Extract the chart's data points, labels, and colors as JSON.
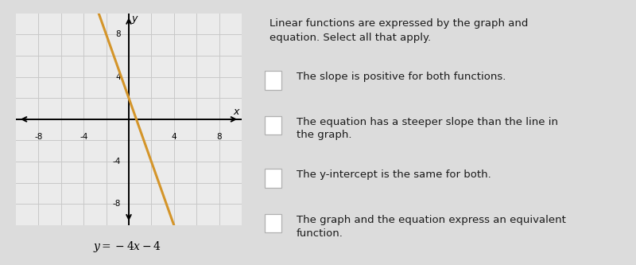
{
  "bg_color": "#dcdcdc",
  "graph_bg": "#ebebeb",
  "right_bg": "#dcdcdc",
  "line_color": "#d4952a",
  "line_slope": -3,
  "line_intercept": 2,
  "x_range": [
    -10,
    10
  ],
  "y_range": [
    -10,
    10
  ],
  "axis_ticks": [
    -8,
    -4,
    4,
    8
  ],
  "equation_label": "$y = -4x - 4$",
  "title_text": "Linear functions are expressed by the graph and\nequation. Select all that apply.",
  "options_line1": [
    "The slope is positive for both functions.",
    "The equation has a steeper slope than the line in",
    "The y-intercept is the same for both.",
    "The graph and the equation express an equivalent"
  ],
  "options_line2": [
    "",
    "the graph.",
    "",
    "function."
  ],
  "checkbox_color": "#b0b0b0",
  "text_color": "#1a1a1a",
  "title_fontsize": 9.5,
  "option_fontsize": 9.5,
  "grid_color": "#c8c8c8"
}
